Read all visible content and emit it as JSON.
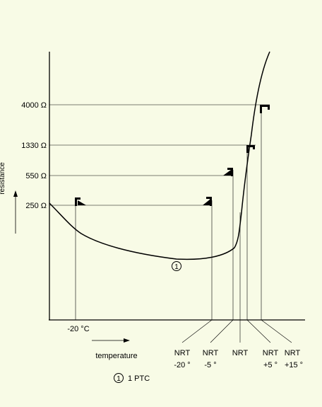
{
  "diagram": {
    "y_axis_label": "resistance",
    "x_axis_label": "temperature",
    "resistance_levels": [
      {
        "label": "4000 Ω",
        "value": 4000
      },
      {
        "label": "1330 Ω",
        "value": 1330
      },
      {
        "label": "550 Ω",
        "value": 550
      },
      {
        "label": "250 Ω",
        "value": 250
      }
    ],
    "temp_marker": "-20 °C",
    "nrt_labels": [
      {
        "line1": "NRT",
        "line2": "-20 °"
      },
      {
        "line1": "NRT",
        "line2": "-5 °"
      },
      {
        "line1": "NRT",
        "line2": ""
      },
      {
        "line1": "NRT",
        "line2": "+5 °"
      },
      {
        "line1": "NRT",
        "line2": "+15 °"
      }
    ],
    "curve_marker": "1",
    "legend": {
      "symbol": "1",
      "text": "1 PTC"
    },
    "colors": {
      "background": "#f8fbe6",
      "ink": "#000000"
    }
  }
}
